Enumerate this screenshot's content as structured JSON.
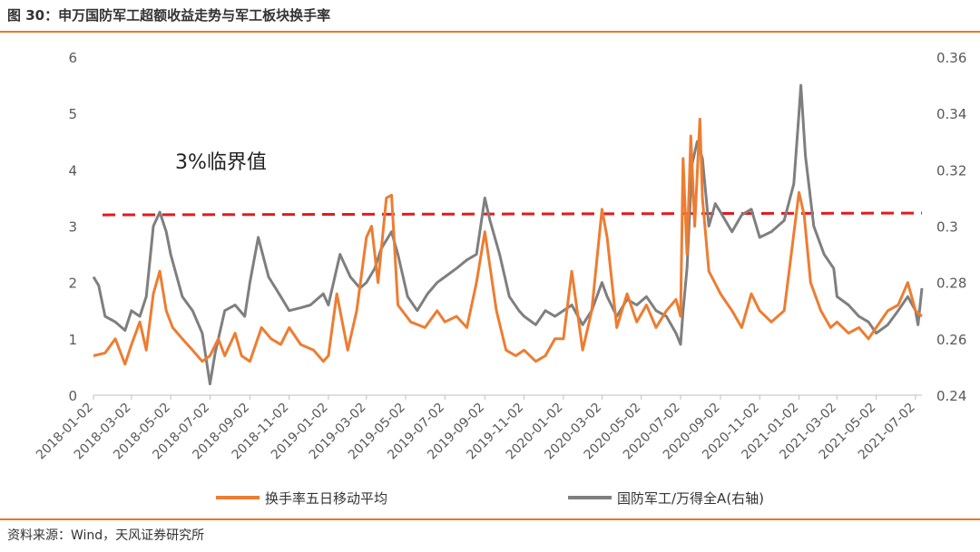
{
  "figure": {
    "title": "图 30：申万国防军工超额收益走势与军工板块换手率",
    "source": "资料来源：Wind，天风证券研究所"
  },
  "chart_data": {
    "type": "line",
    "title": "",
    "x_ticks": [
      "2018-01-02",
      "2018-03-02",
      "2018-05-02",
      "2018-07-02",
      "2018-09-02",
      "2018-11-02",
      "2019-01-02",
      "2019-03-02",
      "2019-05-02",
      "2019-07-02",
      "2019-09-02",
      "2019-11-02",
      "2020-01-02",
      "2020-03-02",
      "2020-05-02",
      "2020-07-02",
      "2020-09-02",
      "2020-11-02",
      "2021-01-02",
      "2021-03-02",
      "2021-05-02",
      "2021-07-02"
    ],
    "x_range": [
      "2018-01-02",
      "2021-07-12"
    ],
    "y_left": {
      "min": 0,
      "max": 6,
      "ticks": [
        "0",
        "1",
        "2",
        "3",
        "4",
        "5",
        "6"
      ]
    },
    "y_right": {
      "min": 0.24,
      "max": 0.36,
      "ticks": [
        "0.24",
        "0.26",
        "0.28",
        "0.3",
        "0.32",
        "0.34",
        "0.36"
      ]
    },
    "annotation": {
      "text": "3%临界值",
      "threshold": 3.2
    },
    "legend_position": "bottom",
    "series": [
      {
        "name": "换手率五日移动平均",
        "axis": "left",
        "color": "#ED7D31",
        "points": [
          [
            "2018-01-02",
            0.7
          ],
          [
            "2018-01-20",
            0.75
          ],
          [
            "2018-02-05",
            1.0
          ],
          [
            "2018-02-20",
            0.55
          ],
          [
            "2018-03-02",
            0.9
          ],
          [
            "2018-03-15",
            1.3
          ],
          [
            "2018-03-25",
            0.8
          ],
          [
            "2018-04-05",
            1.8
          ],
          [
            "2018-04-15",
            2.2
          ],
          [
            "2018-04-25",
            1.5
          ],
          [
            "2018-05-05",
            1.2
          ],
          [
            "2018-05-20",
            1.0
          ],
          [
            "2018-06-05",
            0.8
          ],
          [
            "2018-06-20",
            0.6
          ],
          [
            "2018-07-02",
            0.7
          ],
          [
            "2018-07-15",
            1.0
          ],
          [
            "2018-07-25",
            0.7
          ],
          [
            "2018-08-10",
            1.1
          ],
          [
            "2018-08-20",
            0.7
          ],
          [
            "2018-09-02",
            0.6
          ],
          [
            "2018-09-20",
            1.2
          ],
          [
            "2018-10-05",
            1.0
          ],
          [
            "2018-10-20",
            0.9
          ],
          [
            "2018-11-02",
            1.2
          ],
          [
            "2018-11-20",
            0.9
          ],
          [
            "2018-12-10",
            0.8
          ],
          [
            "2018-12-25",
            0.6
          ],
          [
            "2019-01-02",
            0.7
          ],
          [
            "2019-01-15",
            1.8
          ],
          [
            "2019-02-01",
            0.8
          ],
          [
            "2019-02-15",
            1.5
          ],
          [
            "2019-03-02",
            2.8
          ],
          [
            "2019-03-10",
            3.0
          ],
          [
            "2019-03-20",
            2.0
          ],
          [
            "2019-04-02",
            3.5
          ],
          [
            "2019-04-10",
            3.55
          ],
          [
            "2019-04-20",
            1.6
          ],
          [
            "2019-05-10",
            1.3
          ],
          [
            "2019-06-01",
            1.2
          ],
          [
            "2019-06-20",
            1.5
          ],
          [
            "2019-07-02",
            1.3
          ],
          [
            "2019-07-20",
            1.4
          ],
          [
            "2019-08-05",
            1.2
          ],
          [
            "2019-08-20",
            2.0
          ],
          [
            "2019-09-02",
            2.9
          ],
          [
            "2019-09-20",
            1.5
          ],
          [
            "2019-10-05",
            0.8
          ],
          [
            "2019-10-20",
            0.7
          ],
          [
            "2019-11-02",
            0.8
          ],
          [
            "2019-11-20",
            0.6
          ],
          [
            "2019-12-05",
            0.7
          ],
          [
            "2019-12-20",
            1.0
          ],
          [
            "2020-01-02",
            1.0
          ],
          [
            "2020-01-15",
            2.2
          ],
          [
            "2020-02-01",
            0.8
          ],
          [
            "2020-02-15",
            1.5
          ],
          [
            "2020-03-02",
            3.3
          ],
          [
            "2020-03-10",
            2.8
          ],
          [
            "2020-03-25",
            1.2
          ],
          [
            "2020-04-10",
            1.8
          ],
          [
            "2020-04-25",
            1.3
          ],
          [
            "2020-05-10",
            1.6
          ],
          [
            "2020-05-25",
            1.2
          ],
          [
            "2020-06-10",
            1.5
          ],
          [
            "2020-06-25",
            1.7
          ],
          [
            "2020-07-02",
            1.4
          ],
          [
            "2020-07-06",
            4.2
          ],
          [
            "2020-07-12",
            2.5
          ],
          [
            "2020-07-18",
            4.6
          ],
          [
            "2020-07-24",
            3.0
          ],
          [
            "2020-08-01",
            4.9
          ],
          [
            "2020-08-05",
            3.5
          ],
          [
            "2020-08-15",
            2.2
          ],
          [
            "2020-09-02",
            1.8
          ],
          [
            "2020-09-20",
            1.5
          ],
          [
            "2020-10-05",
            1.2
          ],
          [
            "2020-10-20",
            1.8
          ],
          [
            "2020-11-02",
            1.5
          ],
          [
            "2020-11-20",
            1.3
          ],
          [
            "2020-12-10",
            1.5
          ],
          [
            "2021-01-02",
            3.6
          ],
          [
            "2021-01-10",
            3.2
          ],
          [
            "2021-01-20",
            2.0
          ],
          [
            "2021-02-05",
            1.5
          ],
          [
            "2021-02-20",
            1.2
          ],
          [
            "2021-03-02",
            1.3
          ],
          [
            "2021-03-20",
            1.1
          ],
          [
            "2021-04-05",
            1.2
          ],
          [
            "2021-04-20",
            1.0
          ],
          [
            "2021-05-02",
            1.2
          ],
          [
            "2021-05-20",
            1.5
          ],
          [
            "2021-06-05",
            1.6
          ],
          [
            "2021-06-20",
            2.0
          ],
          [
            "2021-07-02",
            1.5
          ],
          [
            "2021-07-12",
            1.4
          ]
        ]
      },
      {
        "name": "国防军工/万得全A(右轴)",
        "axis": "right",
        "color": "#7F7F7F",
        "points": [
          [
            "2018-01-02",
            0.282
          ],
          [
            "2018-01-10",
            0.279
          ],
          [
            "2018-01-20",
            0.268
          ],
          [
            "2018-02-05",
            0.266
          ],
          [
            "2018-02-20",
            0.263
          ],
          [
            "2018-03-02",
            0.27
          ],
          [
            "2018-03-15",
            0.268
          ],
          [
            "2018-03-25",
            0.275
          ],
          [
            "2018-04-05",
            0.3
          ],
          [
            "2018-04-15",
            0.305
          ],
          [
            "2018-04-25",
            0.298
          ],
          [
            "2018-05-02",
            0.29
          ],
          [
            "2018-05-20",
            0.275
          ],
          [
            "2018-06-05",
            0.27
          ],
          [
            "2018-06-20",
            0.262
          ],
          [
            "2018-07-02",
            0.244
          ],
          [
            "2018-07-10",
            0.255
          ],
          [
            "2018-07-25",
            0.27
          ],
          [
            "2018-08-10",
            0.272
          ],
          [
            "2018-08-25",
            0.268
          ],
          [
            "2018-09-02",
            0.28
          ],
          [
            "2018-09-15",
            0.296
          ],
          [
            "2018-10-01",
            0.282
          ],
          [
            "2018-10-20",
            0.275
          ],
          [
            "2018-11-02",
            0.27
          ],
          [
            "2018-11-20",
            0.271
          ],
          [
            "2018-12-05",
            0.272
          ],
          [
            "2018-12-25",
            0.276
          ],
          [
            "2019-01-02",
            0.272
          ],
          [
            "2019-01-20",
            0.29
          ],
          [
            "2019-02-05",
            0.282
          ],
          [
            "2019-02-20",
            0.278
          ],
          [
            "2019-03-02",
            0.28
          ],
          [
            "2019-03-15",
            0.285
          ],
          [
            "2019-03-25",
            0.292
          ],
          [
            "2019-04-10",
            0.298
          ],
          [
            "2019-04-20",
            0.29
          ],
          [
            "2019-05-05",
            0.275
          ],
          [
            "2019-05-20",
            0.27
          ],
          [
            "2019-06-05",
            0.276
          ],
          [
            "2019-06-20",
            0.28
          ],
          [
            "2019-07-02",
            0.282
          ],
          [
            "2019-07-20",
            0.285
          ],
          [
            "2019-08-05",
            0.288
          ],
          [
            "2019-08-20",
            0.29
          ],
          [
            "2019-09-02",
            0.31
          ],
          [
            "2019-09-10",
            0.302
          ],
          [
            "2019-09-25",
            0.29
          ],
          [
            "2019-10-10",
            0.275
          ],
          [
            "2019-10-25",
            0.27
          ],
          [
            "2019-11-02",
            0.268
          ],
          [
            "2019-11-20",
            0.265
          ],
          [
            "2019-12-05",
            0.27
          ],
          [
            "2019-12-20",
            0.268
          ],
          [
            "2020-01-02",
            0.27
          ],
          [
            "2020-01-15",
            0.272
          ],
          [
            "2020-02-01",
            0.265
          ],
          [
            "2020-02-15",
            0.27
          ],
          [
            "2020-03-02",
            0.28
          ],
          [
            "2020-03-10",
            0.275
          ],
          [
            "2020-03-25",
            0.268
          ],
          [
            "2020-04-10",
            0.274
          ],
          [
            "2020-04-25",
            0.272
          ],
          [
            "2020-05-10",
            0.275
          ],
          [
            "2020-05-25",
            0.27
          ],
          [
            "2020-06-10",
            0.268
          ],
          [
            "2020-06-25",
            0.262
          ],
          [
            "2020-07-02",
            0.258
          ],
          [
            "2020-07-06",
            0.27
          ],
          [
            "2020-07-12",
            0.285
          ],
          [
            "2020-07-20",
            0.322
          ],
          [
            "2020-07-28",
            0.33
          ],
          [
            "2020-08-05",
            0.324
          ],
          [
            "2020-08-15",
            0.3
          ],
          [
            "2020-08-25",
            0.308
          ],
          [
            "2020-09-02",
            0.305
          ],
          [
            "2020-09-20",
            0.298
          ],
          [
            "2020-10-05",
            0.304
          ],
          [
            "2020-10-20",
            0.306
          ],
          [
            "2020-11-02",
            0.296
          ],
          [
            "2020-11-20",
            0.298
          ],
          [
            "2020-12-10",
            0.302
          ],
          [
            "2020-12-25",
            0.315
          ],
          [
            "2021-01-02",
            0.34
          ],
          [
            "2021-01-05",
            0.35
          ],
          [
            "2021-01-12",
            0.325
          ],
          [
            "2021-01-25",
            0.3
          ],
          [
            "2021-02-10",
            0.29
          ],
          [
            "2021-02-25",
            0.285
          ],
          [
            "2021-03-02",
            0.275
          ],
          [
            "2021-03-20",
            0.272
          ],
          [
            "2021-04-05",
            0.268
          ],
          [
            "2021-04-20",
            0.266
          ],
          [
            "2021-05-02",
            0.262
          ],
          [
            "2021-05-20",
            0.265
          ],
          [
            "2021-06-05",
            0.27
          ],
          [
            "2021-06-20",
            0.275
          ],
          [
            "2021-07-02",
            0.27
          ],
          [
            "2021-07-06",
            0.265
          ],
          [
            "2021-07-12",
            0.278
          ]
        ]
      }
    ]
  }
}
